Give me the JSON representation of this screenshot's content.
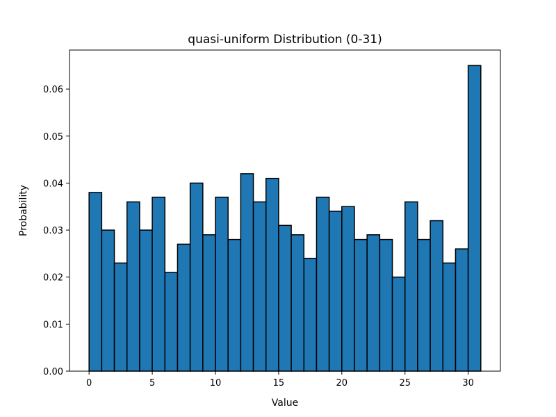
{
  "chart_data": {
    "type": "bar",
    "title": "quasi-uniform Distribution (0-31)",
    "xlabel": "Value",
    "ylabel": "Probability",
    "bin_edges_start": 0,
    "bin_width": 1,
    "values": [
      0.038,
      0.03,
      0.023,
      0.036,
      0.03,
      0.037,
      0.021,
      0.027,
      0.04,
      0.029,
      0.037,
      0.028,
      0.042,
      0.036,
      0.041,
      0.031,
      0.029,
      0.024,
      0.037,
      0.034,
      0.035,
      0.028,
      0.029,
      0.028,
      0.02,
      0.036,
      0.028,
      0.032,
      0.023,
      0.026,
      0.065
    ],
    "xlim": [
      -1.55,
      32.55
    ],
    "ylim": [
      0,
      0.0683
    ],
    "xticks": [
      0,
      5,
      10,
      15,
      20,
      25,
      30
    ],
    "xtick_labels": [
      "0",
      "5",
      "10",
      "15",
      "20",
      "25",
      "30"
    ],
    "yticks": [
      0.0,
      0.01,
      0.02,
      0.03,
      0.04,
      0.05,
      0.06
    ],
    "ytick_labels": [
      "0.00",
      "0.01",
      "0.02",
      "0.03",
      "0.04",
      "0.05",
      "0.06"
    ],
    "grid": false,
    "bar_color": "#1f77b4",
    "edge_color": "#000000"
  }
}
